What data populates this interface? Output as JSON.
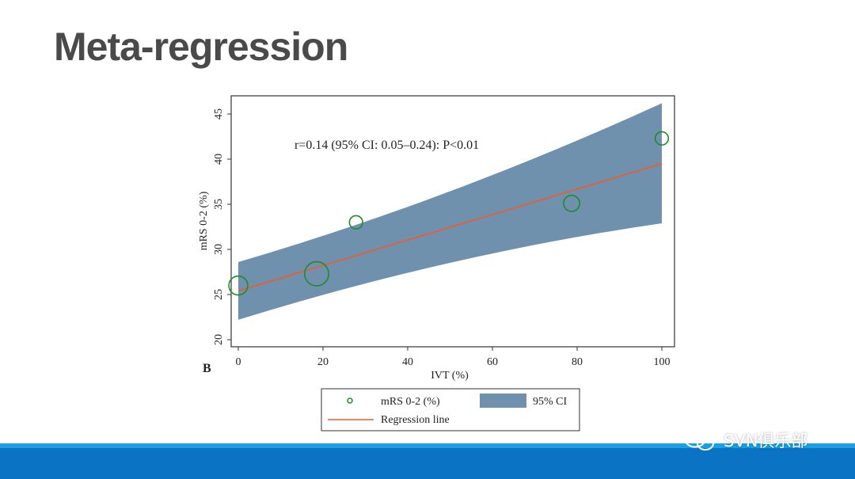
{
  "slide": {
    "title": "Meta-regression",
    "watermark": "SVN俱乐部",
    "panel_label": "B"
  },
  "colors": {
    "ci_band": "#6f91ad",
    "regression_line": "#f05a28",
    "marker": "#1f8a2e",
    "footer": "#0a73c3",
    "title": "#4a4a4a"
  },
  "chart_data": {
    "type": "scatter",
    "xlabel": "IVT (%)",
    "ylabel": "mRS 0-2 (%)",
    "xlim": [
      0,
      100
    ],
    "ylim": [
      20,
      45
    ],
    "xticks": [
      "0",
      "20",
      "40",
      "60",
      "80",
      "100"
    ],
    "yticks": [
      "20",
      "25",
      "30",
      "35",
      "40",
      "45"
    ],
    "annotation": "r=0.14  (95% CI: 0.05–0.24): P<0.01",
    "grid": false,
    "legend_position": "bottom",
    "series": [
      {
        "name": "mRS 0-2 (%)",
        "kind": "bubble",
        "points": [
          {
            "x": 0,
            "y": 26.0,
            "weight": 2
          },
          {
            "x": 18.5,
            "y": 27.3,
            "weight": 4
          },
          {
            "x": 27.8,
            "y": 33.0,
            "weight": 0.6
          },
          {
            "x": 78.7,
            "y": 35.1,
            "weight": 1.2
          },
          {
            "x": 100,
            "y": 42.3,
            "weight": 0.6
          }
        ]
      },
      {
        "name": "Regression line",
        "kind": "line",
        "x": [
          0,
          100
        ],
        "y": [
          25.4,
          39.5
        ]
      },
      {
        "name": "95% CI",
        "kind": "band",
        "x": [
          0,
          100
        ],
        "upper": [
          28.6,
          46.2
        ],
        "lower": [
          22.2,
          32.9
        ]
      }
    ],
    "legend": [
      "mRS 0-2 (%)",
      "95% CI",
      "Regression line"
    ]
  }
}
